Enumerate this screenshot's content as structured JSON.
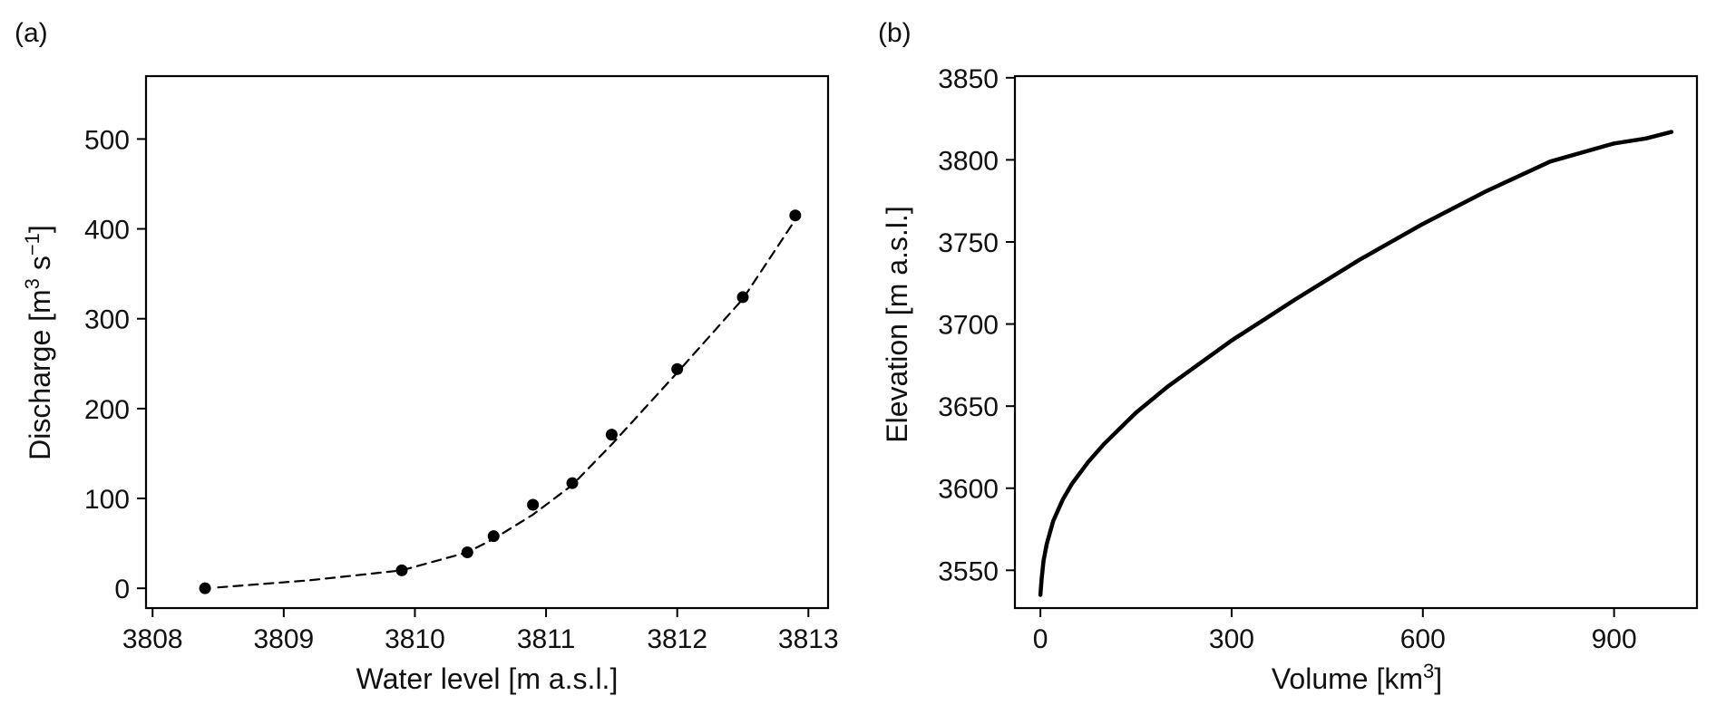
{
  "chart_data": [
    {
      "panel": "(a)",
      "type": "scatter",
      "xlabel": "Water level [m a.s.l.]",
      "ylabel": "Discharge [m",
      "ylabel_sup1": "3",
      "ylabel_mid": " s",
      "ylabel_sup2": "−1",
      "ylabel_end": "]",
      "xlim": [
        3807.95,
        3813.15
      ],
      "ylim": [
        -22,
        570
      ],
      "xticks": [
        3808,
        3809,
        3810,
        3811,
        3812,
        3813
      ],
      "yticks": [
        0,
        100,
        200,
        300,
        400,
        500
      ],
      "grid": false,
      "series": [
        {
          "kind": "points",
          "x": [
            3808.4,
            3809.9,
            3810.4,
            3810.6,
            3810.9,
            3811.2,
            3811.5,
            3812.0,
            3812.5,
            3812.9
          ],
          "y": [
            0,
            20,
            40,
            58,
            93,
            117,
            171,
            244,
            324,
            415
          ]
        },
        {
          "kind": "fit-line-dashed",
          "x": [
            3808.5,
            3809.2,
            3809.9,
            3810.1,
            3810.4,
            3810.6,
            3810.9,
            3811.2,
            3811.5,
            3812.0,
            3812.5,
            3812.9
          ],
          "y": [
            1,
            9,
            20,
            28,
            40,
            55,
            82,
            115,
            160,
            240,
            322,
            410
          ]
        }
      ]
    },
    {
      "panel": "(b)",
      "type": "line",
      "xlabel": "Volume [km",
      "xlabel_sup": "3",
      "xlabel_end": "]",
      "ylabel": "Elevation [m a.s.l.]",
      "xlim": [
        -40,
        1030
      ],
      "ylim": [
        3527,
        3851
      ],
      "xticks": [
        0,
        300,
        600,
        900
      ],
      "yticks": [
        3550,
        3600,
        3650,
        3700,
        3750,
        3800,
        3850
      ],
      "grid": false,
      "series": [
        {
          "kind": "solid-line",
          "x": [
            0,
            2,
            5,
            10,
            20,
            35,
            50,
            75,
            100,
            150,
            200,
            250,
            300,
            400,
            500,
            600,
            700,
            800,
            900,
            950,
            990
          ],
          "y": [
            3535,
            3545,
            3556,
            3566,
            3580,
            3593,
            3603,
            3616,
            3627,
            3646,
            3662,
            3676,
            3690,
            3715,
            3739,
            3761,
            3781,
            3799,
            3810,
            3813,
            3817
          ]
        }
      ]
    }
  ]
}
